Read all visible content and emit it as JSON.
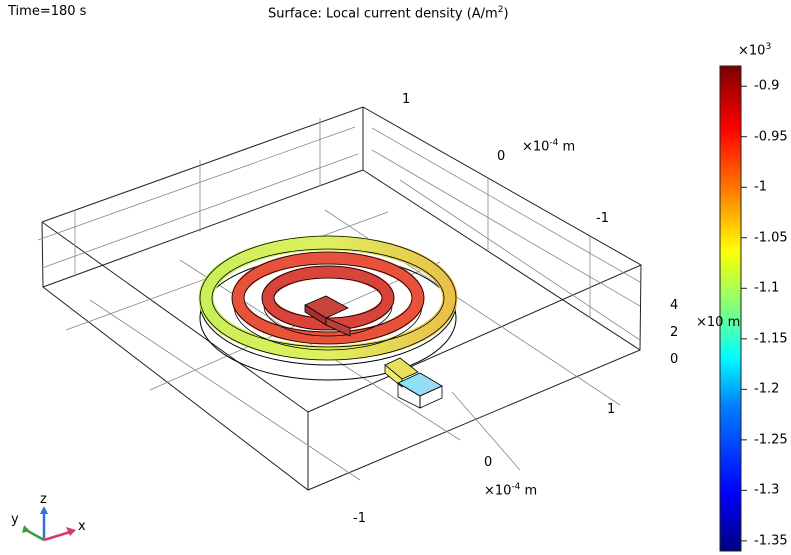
{
  "header": {
    "time_label": "Time=180 s",
    "title_prefix": "Surface: Local current density (A/m",
    "title_sup": "2",
    "title_suffix": ")"
  },
  "chart_data": {
    "type": "heatmap",
    "title": "Surface: Local current density (A/m²)",
    "subtitle": "Time=180 s",
    "colorbar": {
      "multiplier": "×10",
      "multiplier_exp": "3",
      "range": [
        -1.36,
        -0.88
      ],
      "ticks": [
        -0.9,
        -0.95,
        -1,
        -1.05,
        -1.1,
        -1.15,
        -1.2,
        -1.25,
        -1.3,
        -1.35
      ],
      "tick_labels": [
        "-0.9",
        "-0.95",
        "-1",
        "-1.05",
        "-1.1",
        "-1.15",
        "-1.2",
        "-1.25",
        "-1.3",
        "-1.35"
      ],
      "colormap": [
        "#00007f",
        "#0000ff",
        "#007fff",
        "#00ffff",
        "#7fff7f",
        "#ffff00",
        "#ff7f00",
        "#ff0000",
        "#7f0000"
      ]
    },
    "axes": {
      "x": {
        "ticks": [
          "1",
          "0",
          "-1"
        ],
        "unit": "×10",
        "unit_exp": "-4",
        "unit_suffix": " m"
      },
      "y": {
        "ticks": [
          "1",
          "0",
          "-1"
        ],
        "unit": "×10",
        "unit_exp": "-4",
        "unit_suffix": " m"
      },
      "z": {
        "ticks": [
          "4",
          "2",
          "0"
        ],
        "unit": "×10",
        "unit_suffix": " m"
      }
    },
    "triad": {
      "x": "x",
      "y": "y",
      "z": "z"
    }
  }
}
